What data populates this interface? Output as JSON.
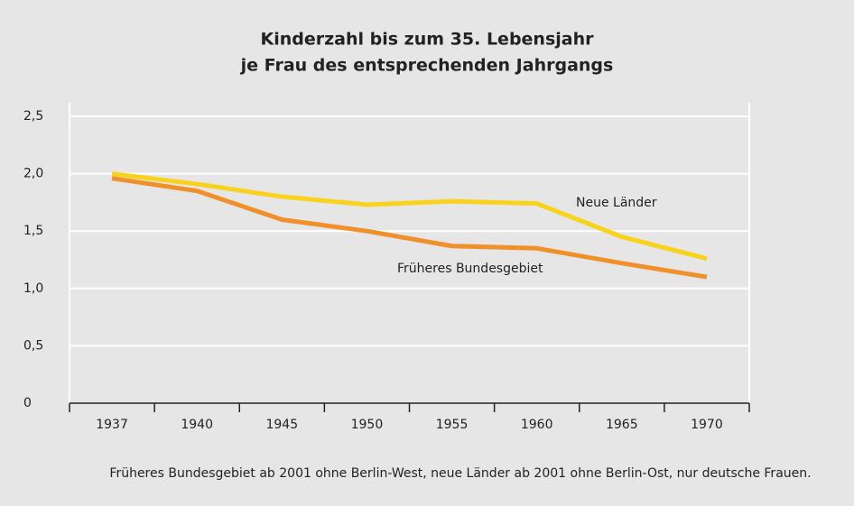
{
  "chart_data": {
    "type": "line",
    "title": "Kinderzahl bis zum 35. Lebensjahr",
    "subtitle": "je Frau des entsprechenden Jahrgangs",
    "categories": [
      "1937",
      "1940",
      "1945",
      "1950",
      "1955",
      "1960",
      "1965",
      "1970"
    ],
    "series": [
      {
        "name": "Neue Länder",
        "color": "#f8d21c",
        "values": [
          2.0,
          1.91,
          1.8,
          1.73,
          1.76,
          1.74,
          1.45,
          1.26
        ]
      },
      {
        "name": "Früheres Bundesgebiet",
        "color": "#f0902a",
        "values": [
          1.96,
          1.85,
          1.6,
          1.5,
          1.37,
          1.35,
          1.22,
          1.1
        ]
      }
    ],
    "ylim": [
      0,
      2.5
    ],
    "yticks": [
      0,
      {
        "value": 0.5,
        "label": "0,5"
      },
      {
        "value": 1,
        "label": "1,0"
      },
      {
        "value": 1.5,
        "label": "1,5"
      },
      {
        "value": 2,
        "label": "2,0"
      },
      {
        "value": 2.5,
        "label": "2,5"
      }
    ],
    "grid": true,
    "footnote": "Früheres Bundesgebiet ab 2001 ohne Berlin-West, neue Länder ab 2001 ohne Berlin-Ost, nur deutsche Frauen."
  }
}
